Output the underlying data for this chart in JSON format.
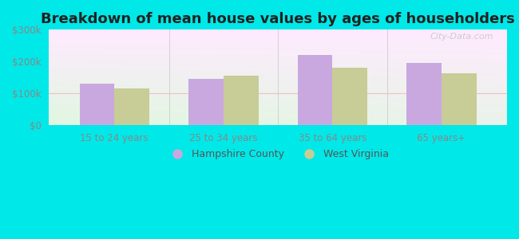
{
  "title": "Breakdown of mean house values by ages of householders",
  "categories": [
    "15 to 24 years",
    "25 to 34 years",
    "35 to 64 years",
    "65 years+"
  ],
  "hampshire_values": [
    130000,
    145000,
    220000,
    197000
  ],
  "wv_values": [
    115000,
    155000,
    180000,
    163000
  ],
  "hampshire_color": "#c9a8e0",
  "wv_color": "#c8cc96",
  "ylim": [
    0,
    300000
  ],
  "yticks": [
    0,
    100000,
    200000,
    300000
  ],
  "ytick_labels": [
    "$0",
    "$100k",
    "$200k",
    "$300k"
  ],
  "outer_bg": "#00e8e8",
  "legend_hampshire": "Hampshire County",
  "legend_wv": "West Virginia",
  "bar_width": 0.32,
  "watermark": "City-Data.com",
  "tick_color": "#888888",
  "title_fontsize": 13
}
